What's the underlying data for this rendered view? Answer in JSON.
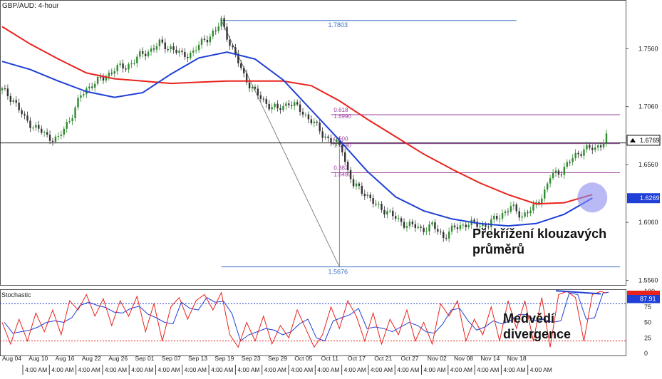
{
  "window_title": "GBP/AUD: 4-hour",
  "stoch_title": "Stochastic",
  "annotations": {
    "ma_cross_line1": "Překřížení klouzavých",
    "ma_cross_line2": "průměrů",
    "divergence_line1": "Medvědí",
    "divergence_line2": "divergence"
  },
  "colors": {
    "ma_fast": "#1f3fd6",
    "ma_slow": "#e8231c",
    "fib": "#9b3fa0",
    "swing": "#3b6fc4",
    "candle_up": "#2e8b2e",
    "candle_down": "#333333",
    "highlight": "#8a8af0",
    "price_badge": "#1f3fd6",
    "stoch_k": "#e8231c",
    "stoch_d": "#1f3fd6",
    "stoch_badge": "#1f3fd6",
    "current_price_badge": "#000000"
  },
  "chart_data": {
    "type": "candlestick",
    "title": "GBP/AUD: 4-hour",
    "y_ticks": [
      "1.7560",
      "1.7060",
      "1.6560",
      "1.6060",
      "1.5560"
    ],
    "ylim": [
      1.552,
      1.798
    ],
    "x_dates": [
      "Aug 04",
      "Aug 10",
      "Aug 16",
      "Aug 22",
      "Aug 26",
      "Sep 01",
      "Sep 07",
      "Sep 13",
      "Sep 19",
      "Sep 23",
      "Sep 29",
      "Oct 05",
      "Oct 11",
      "Oct 17",
      "Oct 21",
      "Oct 27",
      "Nov 02",
      "Nov 08",
      "Nov 14",
      "Nov 18"
    ],
    "x_time_label": "4:00 AM",
    "current_price": "1.6769",
    "ma_price_label": "1.6269",
    "price_path": [
      [
        0,
        1.72
      ],
      [
        4,
        1.712
      ],
      [
        8,
        1.695
      ],
      [
        12,
        1.688
      ],
      [
        16,
        1.68
      ],
      [
        20,
        1.678
      ],
      [
        24,
        1.695
      ],
      [
        28,
        1.715
      ],
      [
        32,
        1.726
      ],
      [
        36,
        1.73
      ],
      [
        40,
        1.739
      ],
      [
        44,
        1.74
      ],
      [
        48,
        1.748
      ],
      [
        52,
        1.754
      ],
      [
        56,
        1.76
      ],
      [
        60,
        1.757
      ],
      [
        64,
        1.75
      ],
      [
        68,
        1.753
      ],
      [
        72,
        1.764
      ],
      [
        76,
        1.771
      ],
      [
        78,
        1.78
      ],
      [
        82,
        1.755
      ],
      [
        86,
        1.733
      ],
      [
        90,
        1.718
      ],
      [
        94,
        1.709
      ],
      [
        98,
        1.703
      ],
      [
        102,
        1.71
      ],
      [
        106,
        1.703
      ],
      [
        110,
        1.694
      ],
      [
        114,
        1.682
      ],
      [
        118,
        1.675
      ],
      [
        121,
        1.67
      ],
      [
        123,
        1.65
      ],
      [
        125,
        1.638
      ],
      [
        129,
        1.632
      ],
      [
        133,
        1.62
      ],
      [
        137,
        1.616
      ],
      [
        141,
        1.607
      ],
      [
        145,
        1.604
      ],
      [
        149,
        1.6
      ],
      [
        153,
        1.603
      ],
      [
        157,
        1.594
      ],
      [
        161,
        1.601
      ],
      [
        165,
        1.605
      ],
      [
        169,
        1.604
      ],
      [
        173,
        1.604
      ],
      [
        177,
        1.612
      ],
      [
        181,
        1.619
      ],
      [
        185,
        1.612
      ],
      [
        189,
        1.618
      ],
      [
        193,
        1.633
      ],
      [
        195,
        1.645
      ],
      [
        199,
        1.651
      ],
      [
        203,
        1.661
      ],
      [
        207,
        1.67
      ],
      [
        211,
        1.669
      ],
      [
        215,
        1.68
      ]
    ],
    "ma_fast_path": [
      [
        0,
        1.745
      ],
      [
        10,
        1.738
      ],
      [
        20,
        1.728
      ],
      [
        30,
        1.719
      ],
      [
        40,
        1.714
      ],
      [
        50,
        1.718
      ],
      [
        60,
        1.734
      ],
      [
        70,
        1.748
      ],
      [
        80,
        1.753
      ],
      [
        90,
        1.747
      ],
      [
        100,
        1.729
      ],
      [
        110,
        1.703
      ],
      [
        120,
        1.677
      ],
      [
        130,
        1.65
      ],
      [
        140,
        1.628
      ],
      [
        150,
        1.616
      ],
      [
        160,
        1.609
      ],
      [
        170,
        1.605
      ],
      [
        180,
        1.603
      ],
      [
        190,
        1.605
      ],
      [
        200,
        1.613
      ],
      [
        210,
        1.627
      ]
    ],
    "ma_slow_path": [
      [
        0,
        1.775
      ],
      [
        10,
        1.76
      ],
      [
        20,
        1.747
      ],
      [
        30,
        1.735
      ],
      [
        40,
        1.73
      ],
      [
        50,
        1.728
      ],
      [
        60,
        1.726
      ],
      [
        70,
        1.727
      ],
      [
        80,
        1.728
      ],
      [
        90,
        1.728
      ],
      [
        100,
        1.728
      ],
      [
        110,
        1.724
      ],
      [
        120,
        1.711
      ],
      [
        130,
        1.695
      ],
      [
        140,
        1.68
      ],
      [
        150,
        1.665
      ],
      [
        160,
        1.652
      ],
      [
        170,
        1.64
      ],
      [
        180,
        1.63
      ],
      [
        190,
        1.622
      ],
      [
        200,
        1.623
      ],
      [
        210,
        1.63
      ]
    ],
    "swing_high": {
      "label": "1.7803",
      "value": 1.7803
    },
    "swing_low": {
      "label": "1.5676",
      "value": 1.5676
    },
    "fib_levels": [
      {
        "ratio": "0.618",
        "label": "1.6990",
        "value": 1.699
      },
      {
        "ratio": "0.500",
        "label": "1.6740",
        "value": 1.674
      },
      {
        "ratio": "0.382",
        "label": "1.6489",
        "value": 1.6489
      }
    ],
    "stochastic": {
      "ticks": [
        "100",
        "75",
        "50",
        "25",
        "0"
      ],
      "upper_band": 80,
      "lower_band": 20,
      "value_label": "87.91",
      "k_path": [
        [
          0,
          50
        ],
        [
          3,
          15
        ],
        [
          6,
          55
        ],
        [
          9,
          20
        ],
        [
          12,
          65
        ],
        [
          15,
          35
        ],
        [
          18,
          70
        ],
        [
          21,
          30
        ],
        [
          24,
          85
        ],
        [
          27,
          70
        ],
        [
          30,
          95
        ],
        [
          33,
          60
        ],
        [
          36,
          88
        ],
        [
          39,
          45
        ],
        [
          42,
          85
        ],
        [
          45,
          60
        ],
        [
          48,
          92
        ],
        [
          51,
          35
        ],
        [
          54,
          80
        ],
        [
          57,
          20
        ],
        [
          60,
          75
        ],
        [
          63,
          90
        ],
        [
          66,
          55
        ],
        [
          69,
          85
        ],
        [
          72,
          95
        ],
        [
          75,
          70
        ],
        [
          78,
          98
        ],
        [
          81,
          30
        ],
        [
          84,
          10
        ],
        [
          87,
          50
        ],
        [
          90,
          20
        ],
        [
          93,
          60
        ],
        [
          96,
          15
        ],
        [
          99,
          45
        ],
        [
          102,
          25
        ],
        [
          105,
          70
        ],
        [
          108,
          40
        ],
        [
          111,
          10
        ],
        [
          114,
          30
        ],
        [
          117,
          75
        ],
        [
          120,
          40
        ],
        [
          123,
          85
        ],
        [
          126,
          60
        ],
        [
          129,
          20
        ],
        [
          132,
          65
        ],
        [
          135,
          15
        ],
        [
          138,
          55
        ],
        [
          141,
          30
        ],
        [
          144,
          70
        ],
        [
          147,
          20
        ],
        [
          150,
          50
        ],
        [
          153,
          15
        ],
        [
          156,
          80
        ],
        [
          159,
          60
        ],
        [
          162,
          85
        ],
        [
          165,
          20
        ],
        [
          168,
          55
        ],
        [
          171,
          30
        ],
        [
          174,
          75
        ],
        [
          177,
          20
        ],
        [
          180,
          85
        ],
        [
          183,
          40
        ],
        [
          186,
          85
        ],
        [
          189,
          20
        ],
        [
          192,
          90
        ],
        [
          195,
          10
        ],
        [
          198,
          95
        ],
        [
          201,
          100
        ],
        [
          204,
          90
        ],
        [
          207,
          20
        ],
        [
          210,
          95
        ],
        [
          213,
          100
        ],
        [
          215,
          97
        ]
      ]
    }
  }
}
